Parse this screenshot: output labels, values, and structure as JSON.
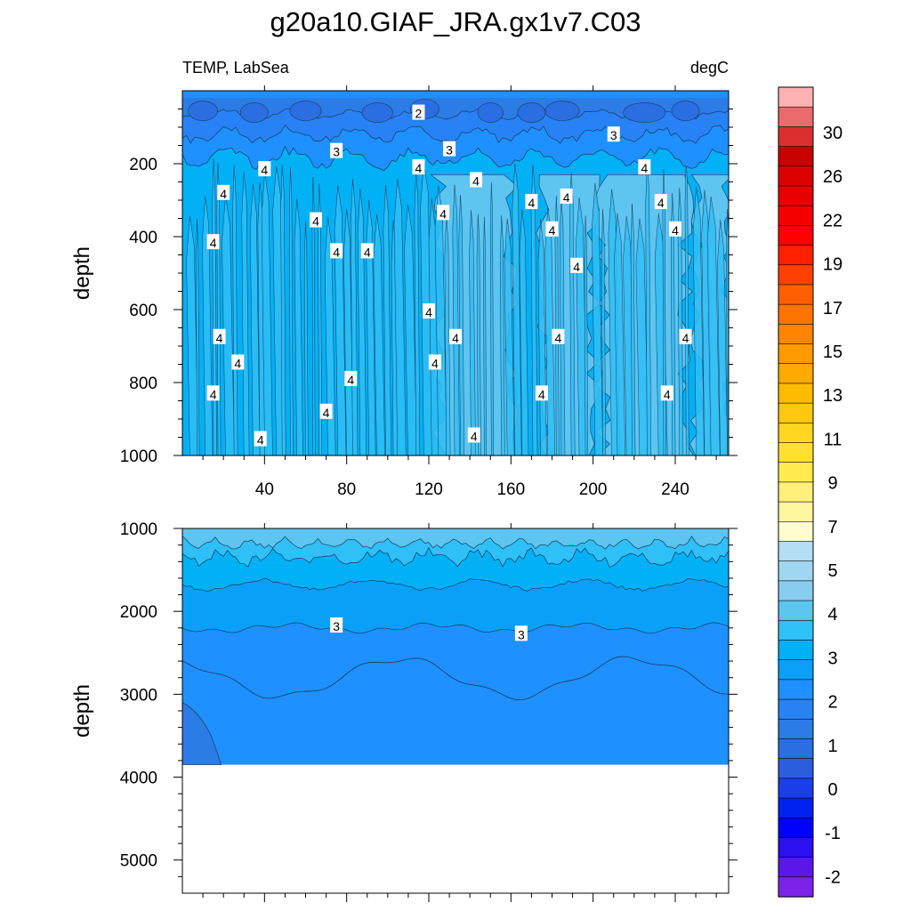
{
  "figure": {
    "title": "g20a10.GIAF_JRA.gx1v7.C03",
    "left_label": "TEMP, LabSea",
    "right_label": "degC"
  },
  "chart_data": [
    {
      "type": "contour",
      "panel": "upper",
      "ylabel": "depth",
      "xlim": [
        0,
        266
      ],
      "ylim": [
        0,
        1000
      ],
      "y_inverted": true,
      "xticks": [
        40,
        80,
        120,
        160,
        200,
        240
      ],
      "yticks": [
        200,
        400,
        600,
        800,
        1000
      ],
      "fill_levels": [
        {
          "level": "<4.0",
          "color": "#1e90ff"
        },
        {
          "level": "4.0-4.5",
          "color": "#02b0f5"
        },
        {
          "level": "4.5-5.0",
          "color": "#2fc0f7"
        },
        {
          "level": "5.0-5.5",
          "color": "#5ec4f0"
        },
        {
          "level": "surface minima 1.5-3",
          "color": "#2c7ce6"
        }
      ],
      "contour_labels": [
        {
          "text": "2",
          "x": 115,
          "y": 60
        },
        {
          "text": "3",
          "x": 75,
          "y": 165
        },
        {
          "text": "3",
          "x": 130,
          "y": 160
        },
        {
          "text": "3",
          "x": 210,
          "y": 120
        },
        {
          "text": "4",
          "x": 40,
          "y": 215
        },
        {
          "text": "4",
          "x": 20,
          "y": 280
        },
        {
          "text": "4",
          "x": 115,
          "y": 210
        },
        {
          "text": "4",
          "x": 143,
          "y": 245
        },
        {
          "text": "4",
          "x": 170,
          "y": 305
        },
        {
          "text": "4",
          "x": 187,
          "y": 290
        },
        {
          "text": "4",
          "x": 225,
          "y": 210
        },
        {
          "text": "4",
          "x": 233,
          "y": 305
        },
        {
          "text": "4",
          "x": 127,
          "y": 335
        },
        {
          "text": "4",
          "x": 65,
          "y": 355
        },
        {
          "text": "4",
          "x": 180,
          "y": 380
        },
        {
          "text": "4",
          "x": 240,
          "y": 380
        },
        {
          "text": "4",
          "x": 15,
          "y": 415
        },
        {
          "text": "4",
          "x": 75,
          "y": 440
        },
        {
          "text": "4",
          "x": 90,
          "y": 440
        },
        {
          "text": "4",
          "x": 192,
          "y": 480
        },
        {
          "text": "4",
          "x": 120,
          "y": 605
        },
        {
          "text": "4",
          "x": 18,
          "y": 675
        },
        {
          "text": "4",
          "x": 133,
          "y": 675
        },
        {
          "text": "4",
          "x": 183,
          "y": 675
        },
        {
          "text": "4",
          "x": 245,
          "y": 675
        },
        {
          "text": "4",
          "x": 27,
          "y": 745
        },
        {
          "text": "4",
          "x": 123,
          "y": 745
        },
        {
          "text": "4",
          "x": 82,
          "y": 790
        },
        {
          "text": "4",
          "x": 15,
          "y": 830
        },
        {
          "text": "4",
          "x": 175,
          "y": 830
        },
        {
          "text": "4",
          "x": 236,
          "y": 830
        },
        {
          "text": "4",
          "x": 70,
          "y": 880
        },
        {
          "text": "4",
          "x": 38,
          "y": 955
        },
        {
          "text": "4",
          "x": 142,
          "y": 945
        }
      ]
    },
    {
      "type": "contour",
      "panel": "lower",
      "ylabel": "depth",
      "xlim": [
        0,
        266
      ],
      "ylim": [
        1000,
        5400
      ],
      "y_inverted": true,
      "yticks": [
        1000,
        2000,
        3000,
        4000,
        5000
      ],
      "bottom_depth": 3850,
      "contour_labels": [
        {
          "text": "3",
          "x": 75,
          "y": 2170
        },
        {
          "text": "3",
          "x": 165,
          "y": 2270
        }
      ]
    }
  ],
  "colorbar": {
    "labels": [
      "30",
      "26",
      "22",
      "19",
      "17",
      "15",
      "13",
      "11",
      "9",
      "7",
      "5",
      "4",
      "3",
      "2",
      "1",
      "0",
      "-1",
      "-2"
    ],
    "colors": [
      "#fcb2b2",
      "#e96b6b",
      "#dc3030",
      "#c80000",
      "#dc0000",
      "#e60000",
      "#f50000",
      "#ff0000",
      "#ff2000",
      "#ff4000",
      "#ff5f00",
      "#ff7300",
      "#ff8500",
      "#ff9a00",
      "#ffaa00",
      "#ffbb00",
      "#ffc810",
      "#ffd520",
      "#ffe030",
      "#ffea50",
      "#fff07a",
      "#fff6a0",
      "#fffcd0",
      "#b3dff5",
      "#9fd6f2",
      "#88ccef",
      "#5ec4f0",
      "#2fc0f7",
      "#02b0f5",
      "#0aa0f8",
      "#1e90ff",
      "#2882f5",
      "#2c7ce6",
      "#2a6ee2",
      "#2a5edc",
      "#1a3ee8",
      "#0022f0",
      "#0000ff",
      "#2d10f0",
      "#5a18e8",
      "#7d22e8"
    ]
  }
}
